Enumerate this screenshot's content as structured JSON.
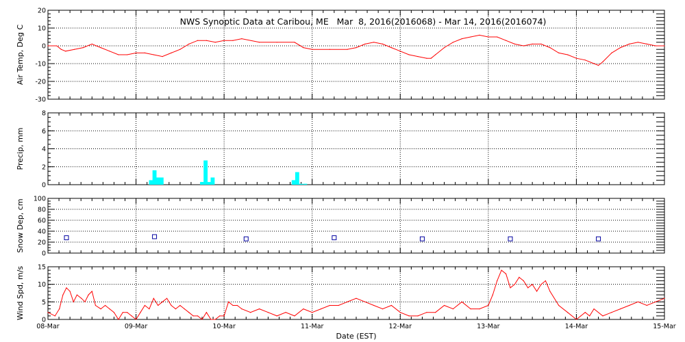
{
  "title": "NWS Synoptic Data at Caribou, ME   Mar  8, 2016(2016068) - Mar 14, 2016(2016074)",
  "xlabel": "Date (EST)",
  "x_ticks": [
    "08-Mar",
    "09-Mar",
    "10-Mar",
    "11-Mar",
    "12-Mar",
    "13-Mar",
    "14-Mar",
    "15-Mar"
  ],
  "colors": {
    "temp": "#ff0000",
    "precip": "#00ffff",
    "snow": "#0000a0",
    "wind": "#ff0000",
    "axis": "#000000"
  },
  "chart_data": [
    {
      "type": "line",
      "ylabel": "Air Temp, Deg C",
      "ylim": [
        -30,
        20
      ],
      "y_ticks": [
        20,
        10,
        0,
        -10,
        -20,
        -30
      ],
      "x_unit": "days since 08-Mar 00:00 EST",
      "series": [
        {
          "x": [
            0.0,
            0.1,
            0.15,
            0.2,
            0.3,
            0.4,
            0.5,
            0.6,
            0.7,
            0.8,
            0.9,
            1.0,
            1.1,
            1.2,
            1.3,
            1.4,
            1.5,
            1.6,
            1.7,
            1.8,
            1.9,
            2.0,
            2.1,
            2.2,
            2.4,
            2.6,
            2.8,
            2.9,
            3.0,
            3.2,
            3.4,
            3.5,
            3.6,
            3.7,
            3.8,
            3.9,
            4.0,
            4.1,
            4.2,
            4.3,
            4.35,
            4.4,
            4.5,
            4.6,
            4.7,
            4.8,
            4.9,
            5.0,
            5.1,
            5.2,
            5.3,
            5.4,
            5.5,
            5.6,
            5.7,
            5.8,
            5.9,
            6.0,
            6.1,
            6.2,
            6.25,
            6.3,
            6.4,
            6.5,
            6.6,
            6.7,
            6.8,
            6.9,
            7.0
          ],
          "y": [
            0,
            0,
            -2,
            -3,
            -2,
            -1,
            1,
            -1,
            -3,
            -5,
            -5,
            -4,
            -4,
            -5,
            -6,
            -4,
            -2,
            1,
            3,
            3,
            2,
            3,
            3,
            4,
            2,
            2,
            2,
            -1,
            -2,
            -2,
            -2,
            -1,
            1,
            2,
            1,
            -1,
            -3,
            -5,
            -6,
            -7,
            -7,
            -5,
            -1,
            2,
            4,
            5,
            6,
            5,
            5,
            3,
            1,
            0,
            1,
            1,
            -1,
            -4,
            -5,
            -7,
            -8,
            -10,
            -11,
            -9,
            -4,
            -1,
            1,
            2,
            1,
            0,
            0
          ]
        }
      ]
    },
    {
      "type": "bar",
      "ylabel": "Precip, mm",
      "ylim": [
        0,
        8
      ],
      "y_ticks": [
        8,
        6,
        4,
        2,
        0
      ],
      "x_unit": "days since 08-Mar 00:00 EST",
      "series": [
        {
          "x": [
            1.17,
            1.21,
            1.25,
            1.29,
            1.75,
            1.79,
            1.83,
            1.87,
            2.79,
            2.83,
            2.87,
            2.92
          ],
          "y": [
            0.5,
            1.6,
            0.8,
            0.8,
            0.3,
            2.7,
            0.3,
            0.8,
            0.5,
            1.4,
            0.1,
            0.1
          ]
        }
      ]
    },
    {
      "type": "scatter",
      "ylabel": "Snow Dep, cm",
      "ylim": [
        0,
        100
      ],
      "y_ticks": [
        100,
        80,
        60,
        40,
        20,
        0
      ],
      "x_unit": "days since 08-Mar 00:00 EST",
      "series": [
        {
          "x": [
            0.21,
            1.21,
            2.25,
            3.25,
            4.25,
            5.25,
            6.25
          ],
          "y": [
            28,
            30,
            26,
            28,
            26,
            26,
            26
          ]
        }
      ]
    },
    {
      "type": "line",
      "ylabel": "Wind Spd, m/s",
      "ylim": [
        0,
        15
      ],
      "y_ticks": [
        15,
        10,
        5,
        0
      ],
      "x_unit": "days since 08-Mar 00:00 EST",
      "series": [
        {
          "x": [
            0.0,
            0.08,
            0.13,
            0.17,
            0.21,
            0.25,
            0.29,
            0.33,
            0.38,
            0.42,
            0.46,
            0.5,
            0.54,
            0.6,
            0.65,
            0.7,
            0.75,
            0.8,
            0.85,
            0.9,
            0.95,
            1.0,
            1.05,
            1.1,
            1.15,
            1.2,
            1.25,
            1.3,
            1.35,
            1.4,
            1.45,
            1.5,
            1.55,
            1.6,
            1.65,
            1.7,
            1.75,
            1.8,
            1.85,
            1.9,
            1.95,
            2.0,
            2.05,
            2.1,
            2.15,
            2.2,
            2.3,
            2.4,
            2.5,
            2.6,
            2.7,
            2.8,
            2.9,
            3.0,
            3.1,
            3.2,
            3.3,
            3.4,
            3.5,
            3.6,
            3.7,
            3.8,
            3.9,
            4.0,
            4.1,
            4.2,
            4.3,
            4.4,
            4.5,
            4.6,
            4.7,
            4.8,
            4.9,
            5.0,
            5.05,
            5.1,
            5.15,
            5.2,
            5.25,
            5.3,
            5.35,
            5.4,
            5.45,
            5.5,
            5.55,
            5.6,
            5.65,
            5.7,
            5.8,
            5.9,
            6.0,
            6.05,
            6.1,
            6.15,
            6.2,
            6.3,
            6.4,
            6.5,
            6.6,
            6.7,
            6.8,
            6.9,
            7.0
          ],
          "y": [
            2,
            1,
            3,
            7,
            9,
            8,
            5,
            7,
            6,
            5,
            7,
            8,
            4,
            3,
            4,
            3,
            2,
            0,
            2,
            2,
            1,
            0,
            2,
            4,
            3,
            6,
            4,
            5,
            6,
            4,
            3,
            4,
            3,
            2,
            1,
            1,
            0,
            2,
            0,
            0,
            1,
            1,
            5,
            4,
            4,
            3,
            2,
            3,
            2,
            1,
            2,
            1,
            3,
            2,
            3,
            4,
            4,
            5,
            6,
            5,
            4,
            3,
            4,
            2,
            1,
            1,
            2,
            2,
            4,
            3,
            5,
            3,
            3,
            4,
            7,
            11,
            14,
            13,
            9,
            10,
            12,
            11,
            9,
            10,
            8,
            10,
            11,
            8,
            4,
            2,
            0,
            1,
            2,
            1,
            3,
            1,
            2,
            3,
            4,
            5,
            4,
            5,
            6
          ]
        }
      ]
    }
  ]
}
